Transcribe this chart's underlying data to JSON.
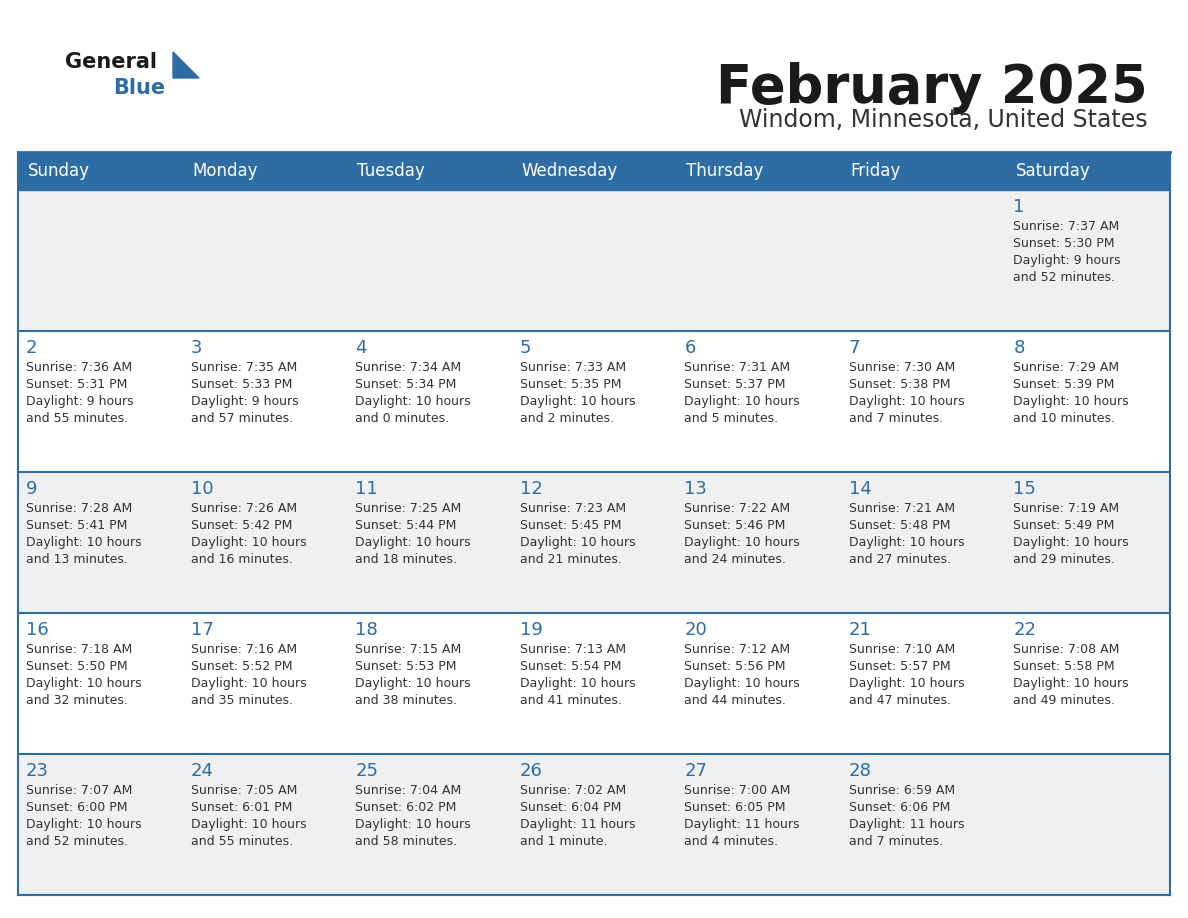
{
  "title": "February 2025",
  "subtitle": "Windom, Minnesota, United States",
  "days_of_week": [
    "Sunday",
    "Monday",
    "Tuesday",
    "Wednesday",
    "Thursday",
    "Friday",
    "Saturday"
  ],
  "header_bg_color": "#2E6DA4",
  "header_text_color": "#FFFFFF",
  "cell_bg_color_light": "#F0F0F0",
  "cell_bg_color_white": "#FFFFFF",
  "cell_border_color": "#2E6DA4",
  "day_number_color": "#2E6DA4",
  "cell_text_color": "#333333",
  "title_color": "#1a1a1a",
  "subtitle_color": "#333333",
  "logo_general_color": "#1a1a1a",
  "logo_blue_color": "#2E6DA4",
  "weeks": [
    {
      "days": [
        {
          "day": null,
          "info": null
        },
        {
          "day": null,
          "info": null
        },
        {
          "day": null,
          "info": null
        },
        {
          "day": null,
          "info": null
        },
        {
          "day": null,
          "info": null
        },
        {
          "day": null,
          "info": null
        },
        {
          "day": 1,
          "info": "Sunrise: 7:37 AM\nSunset: 5:30 PM\nDaylight: 9 hours\nand 52 minutes."
        }
      ]
    },
    {
      "days": [
        {
          "day": 2,
          "info": "Sunrise: 7:36 AM\nSunset: 5:31 PM\nDaylight: 9 hours\nand 55 minutes."
        },
        {
          "day": 3,
          "info": "Sunrise: 7:35 AM\nSunset: 5:33 PM\nDaylight: 9 hours\nand 57 minutes."
        },
        {
          "day": 4,
          "info": "Sunrise: 7:34 AM\nSunset: 5:34 PM\nDaylight: 10 hours\nand 0 minutes."
        },
        {
          "day": 5,
          "info": "Sunrise: 7:33 AM\nSunset: 5:35 PM\nDaylight: 10 hours\nand 2 minutes."
        },
        {
          "day": 6,
          "info": "Sunrise: 7:31 AM\nSunset: 5:37 PM\nDaylight: 10 hours\nand 5 minutes."
        },
        {
          "day": 7,
          "info": "Sunrise: 7:30 AM\nSunset: 5:38 PM\nDaylight: 10 hours\nand 7 minutes."
        },
        {
          "day": 8,
          "info": "Sunrise: 7:29 AM\nSunset: 5:39 PM\nDaylight: 10 hours\nand 10 minutes."
        }
      ]
    },
    {
      "days": [
        {
          "day": 9,
          "info": "Sunrise: 7:28 AM\nSunset: 5:41 PM\nDaylight: 10 hours\nand 13 minutes."
        },
        {
          "day": 10,
          "info": "Sunrise: 7:26 AM\nSunset: 5:42 PM\nDaylight: 10 hours\nand 16 minutes."
        },
        {
          "day": 11,
          "info": "Sunrise: 7:25 AM\nSunset: 5:44 PM\nDaylight: 10 hours\nand 18 minutes."
        },
        {
          "day": 12,
          "info": "Sunrise: 7:23 AM\nSunset: 5:45 PM\nDaylight: 10 hours\nand 21 minutes."
        },
        {
          "day": 13,
          "info": "Sunrise: 7:22 AM\nSunset: 5:46 PM\nDaylight: 10 hours\nand 24 minutes."
        },
        {
          "day": 14,
          "info": "Sunrise: 7:21 AM\nSunset: 5:48 PM\nDaylight: 10 hours\nand 27 minutes."
        },
        {
          "day": 15,
          "info": "Sunrise: 7:19 AM\nSunset: 5:49 PM\nDaylight: 10 hours\nand 29 minutes."
        }
      ]
    },
    {
      "days": [
        {
          "day": 16,
          "info": "Sunrise: 7:18 AM\nSunset: 5:50 PM\nDaylight: 10 hours\nand 32 minutes."
        },
        {
          "day": 17,
          "info": "Sunrise: 7:16 AM\nSunset: 5:52 PM\nDaylight: 10 hours\nand 35 minutes."
        },
        {
          "day": 18,
          "info": "Sunrise: 7:15 AM\nSunset: 5:53 PM\nDaylight: 10 hours\nand 38 minutes."
        },
        {
          "day": 19,
          "info": "Sunrise: 7:13 AM\nSunset: 5:54 PM\nDaylight: 10 hours\nand 41 minutes."
        },
        {
          "day": 20,
          "info": "Sunrise: 7:12 AM\nSunset: 5:56 PM\nDaylight: 10 hours\nand 44 minutes."
        },
        {
          "day": 21,
          "info": "Sunrise: 7:10 AM\nSunset: 5:57 PM\nDaylight: 10 hours\nand 47 minutes."
        },
        {
          "day": 22,
          "info": "Sunrise: 7:08 AM\nSunset: 5:58 PM\nDaylight: 10 hours\nand 49 minutes."
        }
      ]
    },
    {
      "days": [
        {
          "day": 23,
          "info": "Sunrise: 7:07 AM\nSunset: 6:00 PM\nDaylight: 10 hours\nand 52 minutes."
        },
        {
          "day": 24,
          "info": "Sunrise: 7:05 AM\nSunset: 6:01 PM\nDaylight: 10 hours\nand 55 minutes."
        },
        {
          "day": 25,
          "info": "Sunrise: 7:04 AM\nSunset: 6:02 PM\nDaylight: 10 hours\nand 58 minutes."
        },
        {
          "day": 26,
          "info": "Sunrise: 7:02 AM\nSunset: 6:04 PM\nDaylight: 11 hours\nand 1 minute."
        },
        {
          "day": 27,
          "info": "Sunrise: 7:00 AM\nSunset: 6:05 PM\nDaylight: 11 hours\nand 4 minutes."
        },
        {
          "day": 28,
          "info": "Sunrise: 6:59 AM\nSunset: 6:06 PM\nDaylight: 11 hours\nand 7 minutes."
        },
        {
          "day": null,
          "info": null
        }
      ]
    }
  ]
}
